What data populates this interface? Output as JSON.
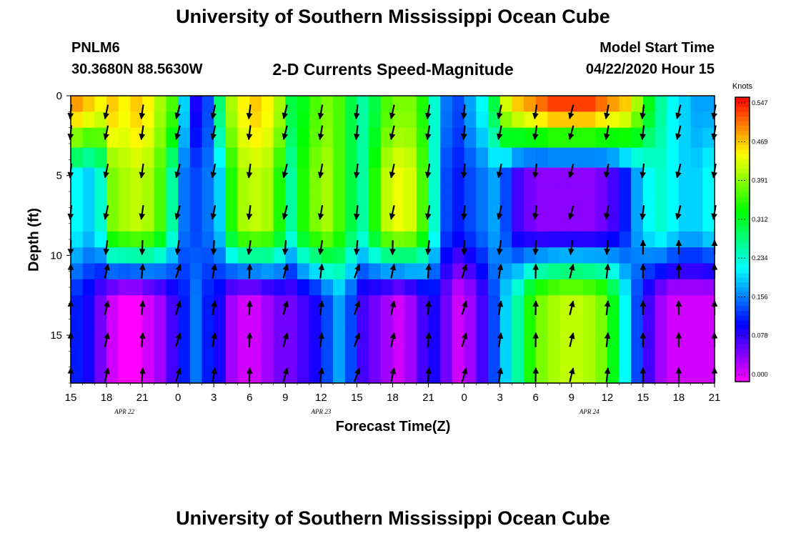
{
  "title_top": "University of Southern Mississippi Ocean Cube",
  "title_bottom": "University of Southern Mississippi Ocean Cube",
  "station": {
    "id": "PNLM6",
    "coords": "30.3680N 88.5630W"
  },
  "subtitle": "2-D Currents Speed-Magnitude",
  "model_start": {
    "label": "Model Start Time",
    "value": "04/22/2020 Hour 15"
  },
  "colorbar": {
    "unit": "Knots",
    "ticks": [
      "0.547",
      "0.469",
      "0.391",
      "0.312",
      "0.234",
      "0.156",
      "0.078",
      "0.000"
    ]
  },
  "chart_data": {
    "type": "heatmap",
    "title": "2-D Currents Speed-Magnitude",
    "xlabel": "Forecast Time(Z)",
    "ylabel": "Depth (ft)",
    "x_ticks": [
      "15",
      "18",
      "21",
      "0",
      "3",
      "6",
      "9",
      "12",
      "15",
      "18",
      "21",
      "0",
      "3",
      "6",
      "9",
      "12",
      "15",
      "18",
      "21"
    ],
    "x_date_labels": [
      {
        "text": "APR 22",
        "at_tick": 1.5
      },
      {
        "text": "APR 23",
        "at_tick": 7
      },
      {
        "text": "APR 24",
        "at_tick": 14.5
      }
    ],
    "x_range_hours": [
      0,
      54
    ],
    "y_ticks": [
      0,
      5,
      10,
      15
    ],
    "ylim": [
      0,
      18
    ],
    "y_reversed": true,
    "value_range": [
      0.0,
      0.547
    ],
    "colormap": "rainbow (purple-blue-cyan-green-yellow-orange-red)",
    "time_step_hours": 1,
    "depth_levels_ft": [
      0.5,
      1.5,
      2.5,
      4.0,
      5.0,
      6.0,
      7.0,
      8.0,
      9.0,
      10.0,
      11.0,
      12.0,
      13.0,
      14.0,
      15.0,
      16.0,
      17.0,
      17.75
    ],
    "profiles": [
      {
        "t": 0,
        "surf": 0.48,
        "mid": 0.22,
        "bot": 0.12
      },
      {
        "t": 1,
        "surf": 0.46,
        "mid": 0.2,
        "bot": 0.1
      },
      {
        "t": 2,
        "surf": 0.44,
        "mid": 0.24,
        "bot": 0.06
      },
      {
        "t": 3,
        "surf": 0.46,
        "mid": 0.38,
        "bot": 0.02
      },
      {
        "t": 4,
        "surf": 0.44,
        "mid": 0.4,
        "bot": 0.0
      },
      {
        "t": 5,
        "surf": 0.46,
        "mid": 0.41,
        "bot": 0.0
      },
      {
        "t": 6,
        "surf": 0.44,
        "mid": 0.4,
        "bot": 0.02
      },
      {
        "t": 7,
        "surf": 0.4,
        "mid": 0.36,
        "bot": 0.04
      },
      {
        "t": 8,
        "surf": 0.36,
        "mid": 0.26,
        "bot": 0.08
      },
      {
        "t": 9,
        "surf": 0.2,
        "mid": 0.16,
        "bot": 0.12
      },
      {
        "t": 10,
        "surf": 0.1,
        "mid": 0.14,
        "bot": 0.16
      },
      {
        "t": 11,
        "surf": 0.14,
        "mid": 0.16,
        "bot": 0.12
      },
      {
        "t": 12,
        "surf": 0.28,
        "mid": 0.2,
        "bot": 0.1
      },
      {
        "t": 13,
        "surf": 0.4,
        "mid": 0.34,
        "bot": 0.04
      },
      {
        "t": 14,
        "surf": 0.44,
        "mid": 0.4,
        "bot": 0.02
      },
      {
        "t": 15,
        "surf": 0.46,
        "mid": 0.41,
        "bot": 0.02
      },
      {
        "t": 16,
        "surf": 0.44,
        "mid": 0.4,
        "bot": 0.04
      },
      {
        "t": 17,
        "surf": 0.4,
        "mid": 0.34,
        "bot": 0.06
      },
      {
        "t": 18,
        "surf": 0.3,
        "mid": 0.26,
        "bot": 0.06
      },
      {
        "t": 19,
        "surf": 0.32,
        "mid": 0.34,
        "bot": 0.08
      },
      {
        "t": 20,
        "surf": 0.36,
        "mid": 0.38,
        "bot": 0.1
      },
      {
        "t": 21,
        "surf": 0.38,
        "mid": 0.4,
        "bot": 0.14
      },
      {
        "t": 22,
        "surf": 0.36,
        "mid": 0.36,
        "bot": 0.18
      },
      {
        "t": 23,
        "surf": 0.3,
        "mid": 0.3,
        "bot": 0.14
      },
      {
        "t": 24,
        "surf": 0.26,
        "mid": 0.26,
        "bot": 0.08
      },
      {
        "t": 25,
        "surf": 0.3,
        "mid": 0.34,
        "bot": 0.06
      },
      {
        "t": 26,
        "surf": 0.36,
        "mid": 0.41,
        "bot": 0.04
      },
      {
        "t": 27,
        "surf": 0.38,
        "mid": 0.43,
        "bot": 0.02
      },
      {
        "t": 28,
        "surf": 0.38,
        "mid": 0.42,
        "bot": 0.04
      },
      {
        "t": 29,
        "surf": 0.34,
        "mid": 0.36,
        "bot": 0.08
      },
      {
        "t": 30,
        "surf": 0.24,
        "mid": 0.24,
        "bot": 0.1
      },
      {
        "t": 31,
        "surf": 0.16,
        "mid": 0.14,
        "bot": 0.06
      },
      {
        "t": 32,
        "surf": 0.14,
        "mid": 0.12,
        "bot": 0.02
      },
      {
        "t": 33,
        "surf": 0.18,
        "mid": 0.14,
        "bot": 0.04
      },
      {
        "t": 34,
        "surf": 0.22,
        "mid": 0.16,
        "bot": 0.08
      },
      {
        "t": 35,
        "surf": 0.3,
        "mid": 0.18,
        "bot": 0.14
      },
      {
        "t": 36,
        "surf": 0.42,
        "mid": 0.14,
        "bot": 0.2
      },
      {
        "t": 37,
        "surf": 0.46,
        "mid": 0.08,
        "bot": 0.26
      },
      {
        "t": 38,
        "surf": 0.48,
        "mid": 0.06,
        "bot": 0.34
      },
      {
        "t": 39,
        "surf": 0.5,
        "mid": 0.05,
        "bot": 0.38
      },
      {
        "t": 40,
        "surf": 0.52,
        "mid": 0.05,
        "bot": 0.4
      },
      {
        "t": 41,
        "surf": 0.52,
        "mid": 0.05,
        "bot": 0.41
      },
      {
        "t": 42,
        "surf": 0.52,
        "mid": 0.05,
        "bot": 0.41
      },
      {
        "t": 43,
        "surf": 0.52,
        "mid": 0.05,
        "bot": 0.4
      },
      {
        "t": 44,
        "surf": 0.5,
        "mid": 0.06,
        "bot": 0.38
      },
      {
        "t": 45,
        "surf": 0.48,
        "mid": 0.08,
        "bot": 0.32
      },
      {
        "t": 46,
        "surf": 0.46,
        "mid": 0.12,
        "bot": 0.22
      },
      {
        "t": 47,
        "surf": 0.4,
        "mid": 0.18,
        "bot": 0.14
      },
      {
        "t": 48,
        "surf": 0.32,
        "mid": 0.22,
        "bot": 0.08
      },
      {
        "t": 49,
        "surf": 0.26,
        "mid": 0.24,
        "bot": 0.04
      },
      {
        "t": 50,
        "surf": 0.22,
        "mid": 0.22,
        "bot": 0.02
      },
      {
        "t": 51,
        "surf": 0.2,
        "mid": 0.2,
        "bot": 0.02
      },
      {
        "t": 52,
        "surf": 0.18,
        "mid": 0.2,
        "bot": 0.02
      },
      {
        "t": 53,
        "surf": 0.18,
        "mid": 0.22,
        "bot": 0.02
      }
    ],
    "arrows": {
      "times_hours": [
        0,
        3,
        6,
        9,
        12,
        15,
        18,
        21,
        24,
        27,
        30,
        33,
        36,
        39,
        42,
        45,
        48,
        51,
        54
      ],
      "depths_ft": [
        1,
        2.3,
        4.7,
        7.3,
        9.5,
        11,
        13.3,
        15.3,
        17.5
      ],
      "surface_direction": "south",
      "bottom_direction_apr22_23": "north-northeast",
      "apr24_mid_direction": "north"
    }
  }
}
